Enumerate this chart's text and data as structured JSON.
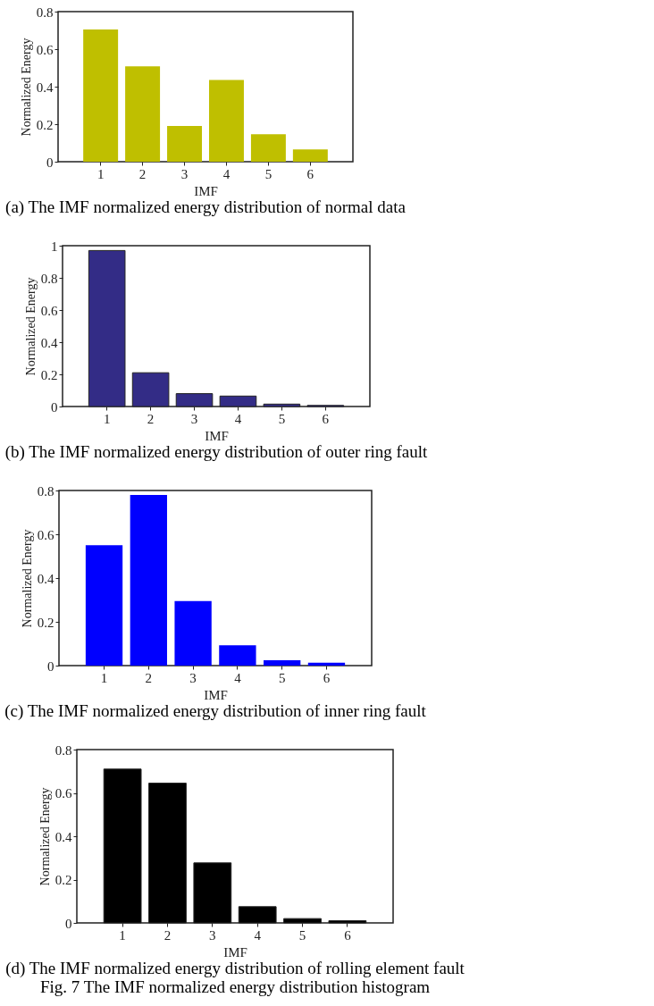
{
  "chart_data": [
    {
      "type": "bar",
      "title": "(a) The IMF normalized energy distribution of normal data",
      "xlabel": "IMF",
      "ylabel": "Normalized Energy",
      "categories": [
        "1",
        "2",
        "3",
        "4",
        "5",
        "6"
      ],
      "values": [
        0.705,
        0.508,
        0.19,
        0.436,
        0.147,
        0.066
      ],
      "color": "#bfbf00",
      "ylim": [
        0,
        0.8
      ],
      "yticks": [
        0,
        0.2,
        0.4,
        0.6,
        0.8
      ],
      "grid": false,
      "legend": false
    },
    {
      "type": "bar",
      "title": "(b) The IMF normalized energy distribution of outer ring fault",
      "xlabel": "IMF",
      "ylabel": "Normalized Energy",
      "categories": [
        "1",
        "2",
        "3",
        "4",
        "5",
        "6"
      ],
      "values": [
        0.97,
        0.21,
        0.08,
        0.065,
        0.015,
        0.007
      ],
      "color": "#332c86",
      "ylim": [
        0,
        1
      ],
      "yticks": [
        0,
        0.2,
        0.4,
        0.6,
        0.8,
        1
      ],
      "grid": false,
      "legend": false
    },
    {
      "type": "bar",
      "title": "(c) The IMF normalized energy distribution of inner ring fault",
      "xlabel": "IMF",
      "ylabel": "Normalized Energy",
      "categories": [
        "1",
        "2",
        "3",
        "4",
        "5",
        "6"
      ],
      "values": [
        0.55,
        0.78,
        0.295,
        0.093,
        0.024,
        0.013
      ],
      "color": "#0000ff",
      "ylim": [
        0,
        0.8
      ],
      "yticks": [
        0,
        0.2,
        0.4,
        0.6,
        0.8
      ],
      "grid": false,
      "legend": false
    },
    {
      "type": "bar",
      "title": "(d) The IMF normalized energy distribution of rolling element fault",
      "xlabel": "IMF",
      "ylabel": "Normalized Energy",
      "categories": [
        "1",
        "2",
        "3",
        "4",
        "5",
        "6"
      ],
      "values": [
        0.71,
        0.645,
        0.277,
        0.075,
        0.02,
        0.01
      ],
      "color": "#000000",
      "ylim": [
        0,
        0.8
      ],
      "yticks": [
        0,
        0.2,
        0.4,
        0.6,
        0.8
      ],
      "grid": false,
      "legend": false,
      "annotations": [
        "Fig. 7 The IMF normalized energy distribution histogram"
      ]
    }
  ]
}
